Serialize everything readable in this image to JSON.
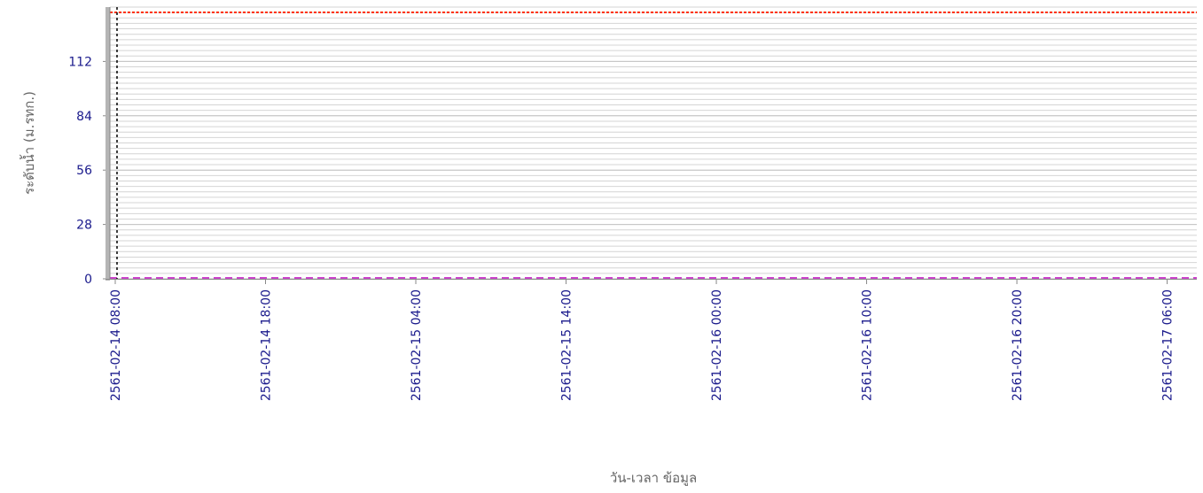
{
  "chart_data": {
    "type": "line",
    "xlabel": "วัน-เวลา ข้อมูล",
    "ylabel": "ระดับน้ำ (ม.รทก.)",
    "yticks": [
      0,
      28,
      56,
      84,
      112
    ],
    "ylim": [
      0,
      140
    ],
    "xlim": [
      "2561-02-14 08:00",
      "2561-02-17 07:30"
    ],
    "xticks": [
      "2561-02-14 08:00",
      "2561-02-14 18:00",
      "2561-02-15 04:00",
      "2561-02-15 14:00",
      "2561-02-16 00:00",
      "2561-02-16 10:00",
      "2561-02-16 20:00",
      "2561-02-17 06:00"
    ],
    "grid": true,
    "series": [],
    "reference_lines": [
      {
        "orientation": "horizontal",
        "value": 140,
        "color": "#ff3300",
        "style": "dotted"
      },
      {
        "orientation": "horizontal",
        "value": 0,
        "color": "#cc44cc",
        "style": "dashed"
      },
      {
        "orientation": "vertical",
        "value": "2561-02-14 08:00",
        "color": "#000000",
        "style": "dashed"
      }
    ]
  },
  "colors": {
    "tick_text": "#1a1a8c",
    "axis_title": "#666666",
    "grid": "#d4d4d4",
    "axis": "#888888",
    "left_band": "#b5b5b5"
  }
}
